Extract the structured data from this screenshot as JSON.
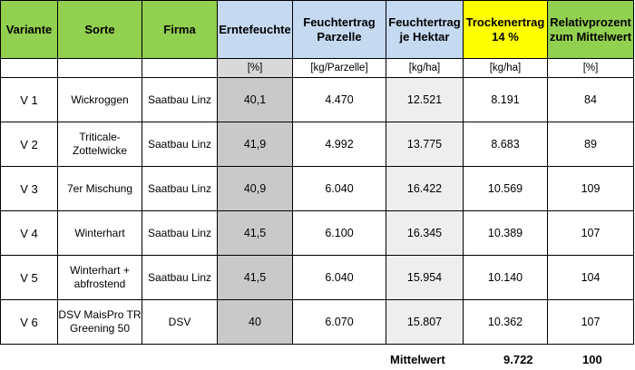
{
  "headers": {
    "variante": "Variante",
    "sorte": "Sorte",
    "firma": "Firma",
    "erntefeuchte": "Erntefeuchte",
    "feuchtertrag_parzelle": "Feuchtertrag Parzelle",
    "feuchtertrag_hektar": "Feuchtertrag je Hektar",
    "trockenertrag": "Trockenertrag 14 %",
    "relativprozent": "Relativprozent zum Mittelwert"
  },
  "units": {
    "erntefeuchte": "[%]",
    "feuchtertrag_parzelle": "[kg/Parzelle]",
    "feuchtertrag_hektar": "[kg/ha]",
    "trockenertrag": "[kg/ha]",
    "relativprozent": "[%]"
  },
  "rows": [
    {
      "variante": "V 1",
      "sorte": "Wickroggen",
      "firma": "Saatbau Linz",
      "erntefeuchte": "40,1",
      "feuchtertrag_parzelle": "4.470",
      "feuchtertrag_hektar": "12.521",
      "trockenertrag": "8.191",
      "relativprozent": "84"
    },
    {
      "variante": "V 2",
      "sorte": "Triticale- Zottelwicke",
      "firma": "Saatbau Linz",
      "erntefeuchte": "41,9",
      "feuchtertrag_parzelle": "4.992",
      "feuchtertrag_hektar": "13.775",
      "trockenertrag": "8.683",
      "relativprozent": "89"
    },
    {
      "variante": "V 3",
      "sorte": "7er Mischung",
      "firma": "Saatbau Linz",
      "erntefeuchte": "40,9",
      "feuchtertrag_parzelle": "6.040",
      "feuchtertrag_hektar": "16.422",
      "trockenertrag": "10.569",
      "relativprozent": "109"
    },
    {
      "variante": "V 4",
      "sorte": "Winterhart",
      "firma": "Saatbau Linz",
      "erntefeuchte": "41,5",
      "feuchtertrag_parzelle": "6.100",
      "feuchtertrag_hektar": "16.345",
      "trockenertrag": "10.389",
      "relativprozent": "107"
    },
    {
      "variante": "V 5",
      "sorte": "Winterhart + abfrostend",
      "firma": "Saatbau Linz",
      "erntefeuchte": "41,5",
      "feuchtertrag_parzelle": "6.040",
      "feuchtertrag_hektar": "15.954",
      "trockenertrag": "10.140",
      "relativprozent": "104"
    },
    {
      "variante": "V 6",
      "sorte": "DSV MaisPro TR Greening 50",
      "firma": "DSV",
      "erntefeuchte": "40",
      "feuchtertrag_parzelle": "6.070",
      "feuchtertrag_hektar": "15.807",
      "trockenertrag": "10.362",
      "relativprozent": "107"
    }
  ],
  "footer": {
    "label": "Mittelwert",
    "trockenertrag_mean": "9.722",
    "relativprozent_mean": "100"
  },
  "colors": {
    "header_green": "#92d050",
    "header_blue": "#c5d9f1",
    "header_yellow": "#ffff00",
    "erntefeuchte_column_grey": "#c9c9c9"
  }
}
